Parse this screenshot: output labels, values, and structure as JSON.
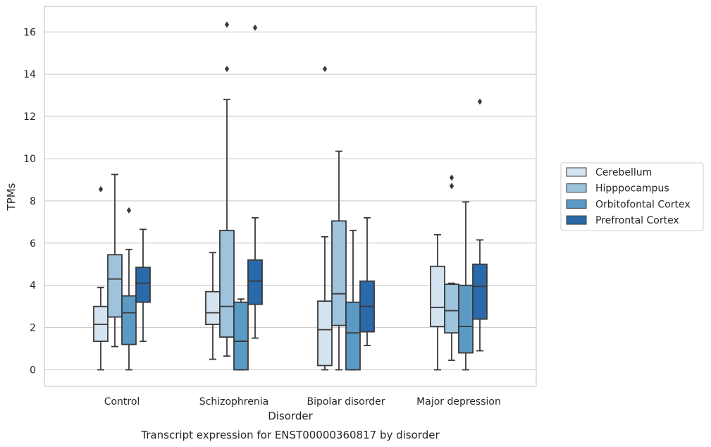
{
  "chart_data": {
    "type": "boxplot",
    "caption": "Transcript expression for ENST00000360817 by disorder",
    "xlabel": "Disorder",
    "ylabel": "TPMs",
    "ylim": [
      -0.8,
      17.2
    ],
    "yticks": [
      0,
      2,
      4,
      6,
      8,
      10,
      12,
      14,
      16
    ],
    "grid": true,
    "legend_position": "right",
    "categories": [
      "Control",
      "Schizophrenia",
      "Bipolar disorder",
      "Major depression"
    ],
    "series": [
      {
        "name": "Cerebellum",
        "color": "#d4e3f0",
        "boxes": [
          {
            "whislo": 0.0,
            "q1": 1.35,
            "med": 2.15,
            "q3": 3.0,
            "whishi": 3.9,
            "fliers": [
              8.55
            ]
          },
          {
            "whislo": 0.5,
            "q1": 2.15,
            "med": 2.7,
            "q3": 3.7,
            "whishi": 5.55,
            "fliers": []
          },
          {
            "whislo": 0.0,
            "q1": 0.2,
            "med": 1.9,
            "q3": 3.25,
            "whishi": 6.3,
            "fliers": [
              14.25
            ]
          },
          {
            "whislo": 0.0,
            "q1": 2.05,
            "med": 2.95,
            "q3": 4.9,
            "whishi": 6.4,
            "fliers": []
          }
        ]
      },
      {
        "name": "Hipppocampus",
        "color": "#9ec3dc",
        "boxes": [
          {
            "whislo": 1.1,
            "q1": 2.5,
            "med": 4.3,
            "q3": 5.45,
            "whishi": 9.25,
            "fliers": []
          },
          {
            "whislo": 0.65,
            "q1": 1.55,
            "med": 3.0,
            "q3": 6.6,
            "whishi": 12.8,
            "fliers": [
              14.25,
              16.35
            ]
          },
          {
            "whislo": 0.0,
            "q1": 2.1,
            "med": 3.6,
            "q3": 7.05,
            "whishi": 10.35,
            "fliers": []
          },
          {
            "whislo": 0.45,
            "q1": 1.75,
            "med": 2.8,
            "q3": 4.05,
            "whishi": 4.1,
            "fliers": [
              8.7,
              9.1
            ]
          }
        ]
      },
      {
        "name": "Orbitofontal Cortex",
        "color": "#5b9ac4",
        "boxes": [
          {
            "whislo": 0.0,
            "q1": 1.2,
            "med": 2.7,
            "q3": 3.5,
            "whishi": 5.7,
            "fliers": [
              7.55
            ]
          },
          {
            "whislo": 0.0,
            "q1": 0.0,
            "med": 1.35,
            "q3": 3.2,
            "whishi": 3.35,
            "fliers": []
          },
          {
            "whislo": 0.0,
            "q1": 0.0,
            "med": 1.75,
            "q3": 3.2,
            "whishi": 6.6,
            "fliers": []
          },
          {
            "whislo": 0.0,
            "q1": 0.8,
            "med": 2.05,
            "q3": 4.0,
            "whishi": 7.95,
            "fliers": []
          }
        ]
      },
      {
        "name": "Prefrontal Cortex",
        "color": "#2a69aa",
        "boxes": [
          {
            "whislo": 1.35,
            "q1": 3.2,
            "med": 4.1,
            "q3": 4.85,
            "whishi": 6.65,
            "fliers": []
          },
          {
            "whislo": 1.5,
            "q1": 3.1,
            "med": 4.2,
            "q3": 5.2,
            "whishi": 7.2,
            "fliers": [
              16.2
            ]
          },
          {
            "whislo": 1.15,
            "q1": 1.8,
            "med": 3.0,
            "q3": 4.2,
            "whishi": 7.2,
            "fliers": []
          },
          {
            "whislo": 0.9,
            "q1": 2.4,
            "med": 3.95,
            "q3": 5.0,
            "whishi": 6.15,
            "fliers": [
              12.7
            ]
          }
        ]
      }
    ]
  }
}
